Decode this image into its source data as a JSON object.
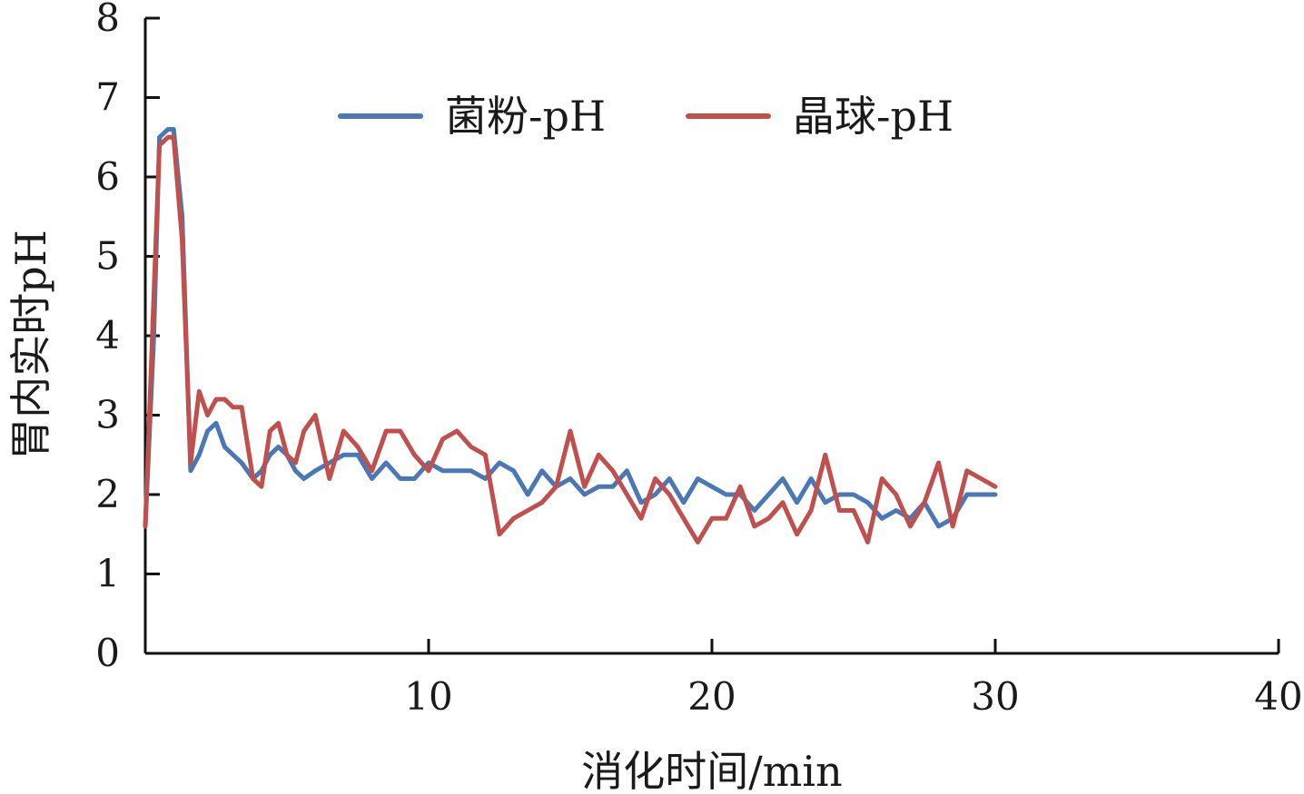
{
  "chart_data": {
    "type": "line",
    "title": "",
    "xlabel": "消化时间/min",
    "ylabel": "胃内实时pH",
    "xlim": [
      0,
      40
    ],
    "ylim": [
      0,
      8
    ],
    "xticks": [
      10,
      20,
      30,
      40
    ],
    "yticks": [
      0,
      1,
      2,
      3,
      4,
      5,
      6,
      7,
      8
    ],
    "grid": false,
    "legend_position": "top",
    "series": [
      {
        "name": "菌粉-pH",
        "color": "#4a78b6",
        "x": [
          0,
          0.3,
          0.5,
          0.8,
          1.0,
          1.3,
          1.6,
          1.9,
          2.2,
          2.5,
          2.8,
          3.1,
          3.4,
          3.8,
          4.1,
          4.4,
          4.7,
          5.0,
          5.3,
          5.6,
          6.0,
          6.5,
          7.0,
          7.5,
          8.0,
          8.5,
          9.0,
          9.5,
          10.0,
          10.5,
          11.0,
          11.5,
          12.0,
          12.5,
          13.0,
          13.5,
          14.0,
          14.5,
          15.0,
          15.5,
          16.0,
          16.5,
          17.0,
          17.5,
          18.0,
          18.5,
          19.0,
          19.5,
          20.0,
          20.5,
          21.0,
          21.5,
          22.0,
          22.5,
          23.0,
          23.5,
          24.0,
          24.5,
          25.0,
          25.5,
          26.0,
          26.5,
          27.0,
          27.5,
          28.0,
          28.5,
          29.0,
          29.5,
          30.0
        ],
        "y": [
          1.6,
          4.0,
          6.5,
          6.6,
          6.6,
          5.5,
          2.3,
          2.5,
          2.8,
          2.9,
          2.6,
          2.5,
          2.4,
          2.2,
          2.3,
          2.5,
          2.6,
          2.5,
          2.3,
          2.2,
          2.3,
          2.4,
          2.5,
          2.5,
          2.2,
          2.4,
          2.2,
          2.2,
          2.4,
          2.3,
          2.3,
          2.3,
          2.2,
          2.4,
          2.3,
          2.0,
          2.3,
          2.1,
          2.2,
          2.0,
          2.1,
          2.1,
          2.3,
          1.9,
          2.0,
          2.2,
          1.9,
          2.2,
          2.1,
          2.0,
          2.0,
          1.8,
          2.0,
          2.2,
          1.9,
          2.2,
          1.9,
          2.0,
          2.0,
          1.9,
          1.7,
          1.8,
          1.7,
          1.9,
          1.6,
          1.7,
          2.0,
          2.0,
          2.0
        ]
      },
      {
        "name": "晶球-pH",
        "color": "#c0504d",
        "x": [
          0,
          0.3,
          0.5,
          0.8,
          1.0,
          1.3,
          1.6,
          1.9,
          2.2,
          2.5,
          2.8,
          3.1,
          3.4,
          3.8,
          4.1,
          4.4,
          4.7,
          5.0,
          5.3,
          5.6,
          6.0,
          6.5,
          7.0,
          7.5,
          8.0,
          8.5,
          9.0,
          9.5,
          10.0,
          10.5,
          11.0,
          11.5,
          12.0,
          12.5,
          13.0,
          13.5,
          14.0,
          14.5,
          15.0,
          15.5,
          16.0,
          16.5,
          17.0,
          17.5,
          18.0,
          18.5,
          19.0,
          19.5,
          20.0,
          20.5,
          21.0,
          21.5,
          22.0,
          22.5,
          23.0,
          23.5,
          24.0,
          24.5,
          25.0,
          25.5,
          26.0,
          26.5,
          27.0,
          27.5,
          28.0,
          28.5,
          29.0,
          29.5,
          30.0
        ],
        "y": [
          1.6,
          4.5,
          6.4,
          6.5,
          6.5,
          5.2,
          2.4,
          3.3,
          3.0,
          3.2,
          3.2,
          3.1,
          3.1,
          2.2,
          2.1,
          2.8,
          2.9,
          2.5,
          2.4,
          2.8,
          3.0,
          2.2,
          2.8,
          2.6,
          2.3,
          2.8,
          2.8,
          2.5,
          2.3,
          2.7,
          2.8,
          2.6,
          2.5,
          1.5,
          1.7,
          1.8,
          1.9,
          2.1,
          2.8,
          2.1,
          2.5,
          2.3,
          2.0,
          1.7,
          2.2,
          2.0,
          1.7,
          1.4,
          1.7,
          1.7,
          2.1,
          1.6,
          1.7,
          1.9,
          1.5,
          1.8,
          2.5,
          1.8,
          1.8,
          1.4,
          2.2,
          2.0,
          1.6,
          1.9,
          2.4,
          1.6,
          2.3,
          2.2,
          2.1
        ]
      }
    ]
  }
}
